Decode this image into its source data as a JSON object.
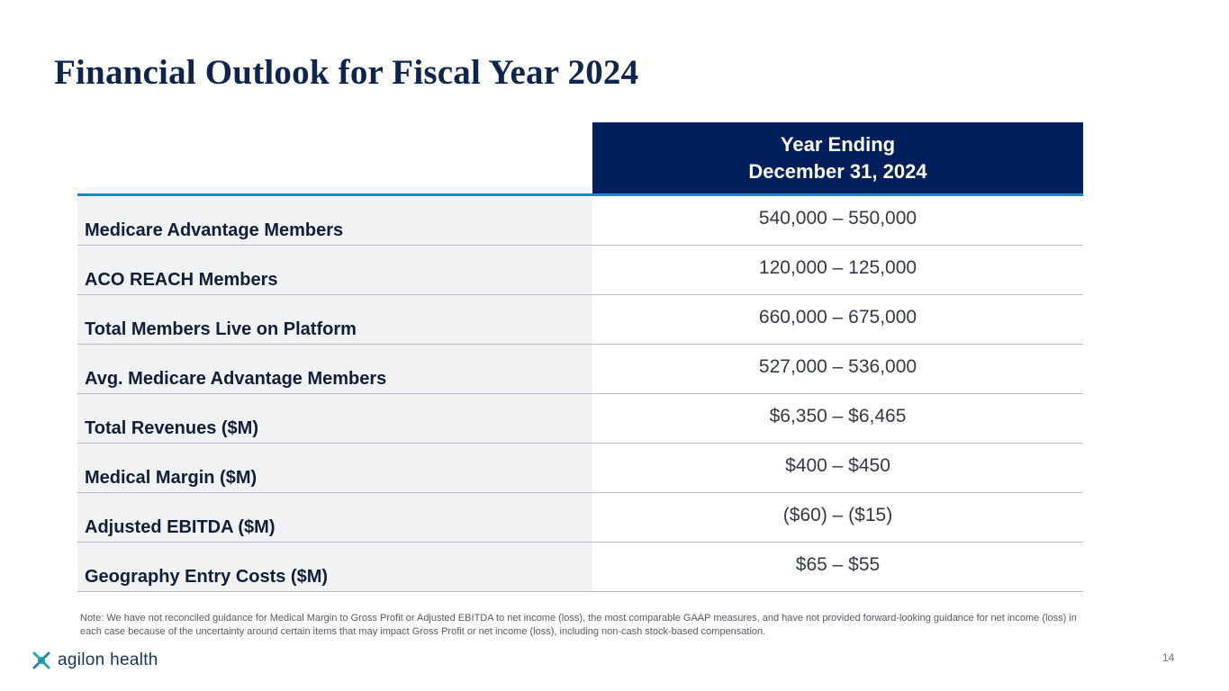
{
  "title": "Financial Outlook for Fiscal Year 2024",
  "table": {
    "header": {
      "line1": "Year Ending",
      "line2": "December 31, 2024"
    },
    "rows": [
      {
        "label": "Medicare Advantage Members",
        "value": "540,000 – 550,000"
      },
      {
        "label": "ACO REACH Members",
        "value": "120,000 – 125,000"
      },
      {
        "label": "Total Members Live on Platform",
        "value": "660,000 – 675,000"
      },
      {
        "label": "Avg. Medicare Advantage Members",
        "value": "527,000 – 536,000"
      },
      {
        "label": "Total Revenues ($M)",
        "value": "$6,350 – $6,465"
      },
      {
        "label": "Medical Margin ($M)",
        "value": "$400 – $450"
      },
      {
        "label": "Adjusted EBITDA ($M)",
        "value": "($60) – ($15)"
      },
      {
        "label": "Geography Entry Costs ($M)",
        "value": "$65 – $55"
      }
    ]
  },
  "note": "Note: We have not reconciled guidance for Medical Margin to Gross Profit or Adjusted EBITDA to net income (loss), the most comparable GAAP measures, and have not provided forward-looking guidance for net income (loss) in each case because of the uncertainty around certain items that may impact Gross Profit or net income (loss), including non-cash stock-based compensation.",
  "footer": {
    "logo_text": "agilon health",
    "logo_icon": "agilon-x-icon",
    "page_number": "14"
  },
  "colors": {
    "title": "#0d2550",
    "header_bg": "#001f5c",
    "accent_line": "#1f88c6",
    "logo_teal": "#2aa6a0"
  }
}
